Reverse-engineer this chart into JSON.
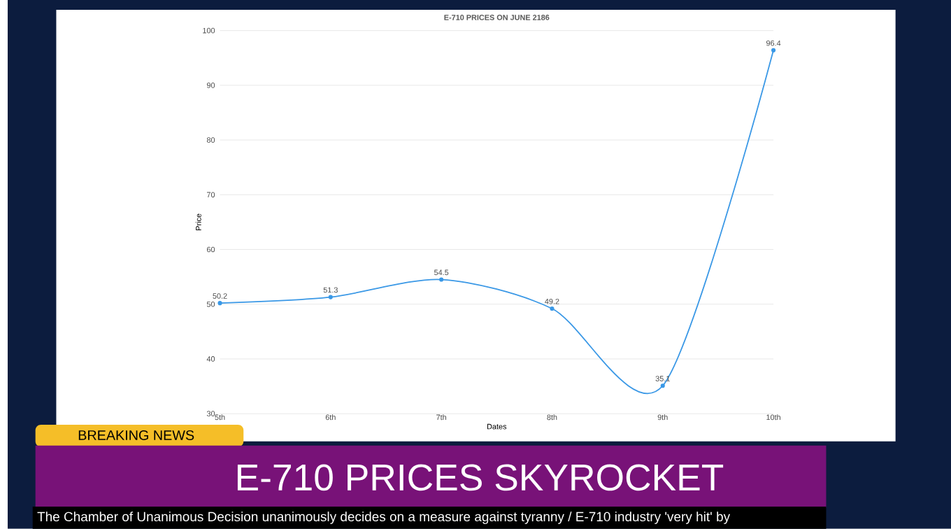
{
  "chart_data": {
    "type": "line",
    "title": "E-710 PRICES ON JUNE 2186",
    "xlabel": "Dates",
    "ylabel": "Price",
    "categories": [
      "5th",
      "6th",
      "7th",
      "8th",
      "9th",
      "10th"
    ],
    "series": [
      {
        "color": "#3a98e6",
        "values": [
          50.2,
          51.3,
          54.5,
          49.2,
          35.1,
          96.4
        ]
      }
    ],
    "ylim": [
      30,
      100
    ],
    "yticks": [
      30,
      40,
      50,
      60,
      70,
      80,
      90,
      100
    ],
    "grid": "y",
    "data_labels": true,
    "marker": "circle",
    "line_style": "solid",
    "annotations": [
      "BREAKING NEWS",
      "E-710 PRICES SKYROCKET",
      "The Chamber of Unanimous Decision unanimously decides on a measure against tyranny / E-710 industry 'very hit' by"
    ]
  }
}
